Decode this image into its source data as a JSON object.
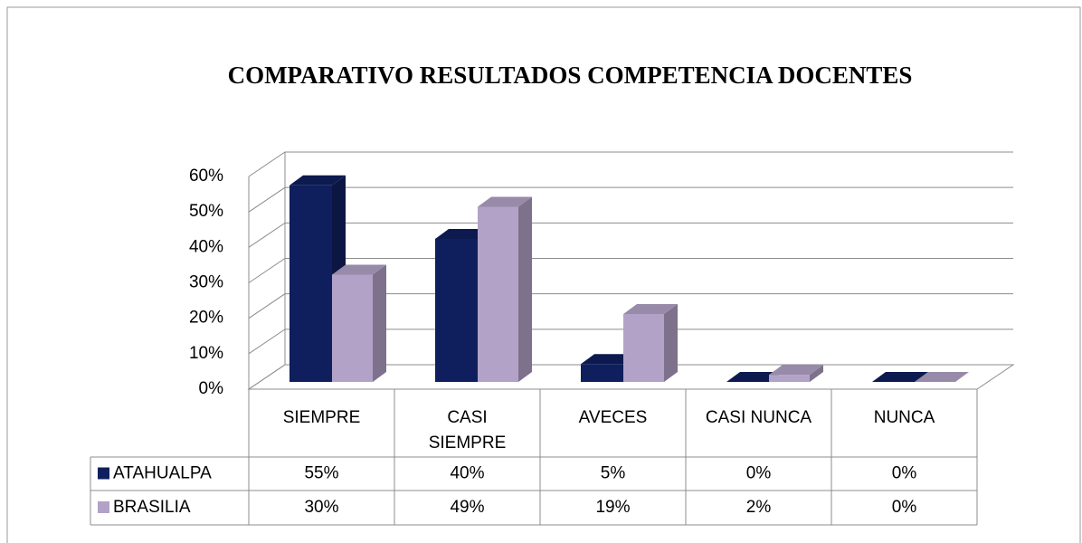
{
  "chart_data": {
    "type": "bar3d",
    "title": "COMPARATIVO RESULTADOS COMPETENCIA  DOCENTES",
    "categories": [
      [
        "SIEMPRE"
      ],
      [
        "CASI",
        "SIEMPRE"
      ],
      [
        "AVECES"
      ],
      [
        "CASI NUNCA"
      ],
      [
        "NUNCA"
      ]
    ],
    "series": [
      {
        "name": "ATAHUALPA",
        "color": "#0f1f5e",
        "values": [
          55,
          40,
          5,
          0,
          0
        ],
        "value_labels": [
          "55%",
          "40%",
          "5%",
          "0%",
          "0%"
        ]
      },
      {
        "name": "BRASILIA",
        "color": "#b3a2c7",
        "values": [
          30,
          49,
          19,
          2,
          0
        ],
        "value_labels": [
          "30%",
          "49%",
          "19%",
          "2%",
          "0%"
        ]
      }
    ],
    "ylim": [
      0,
      60
    ],
    "yticks": [
      {
        "value": 0,
        "label": "0%"
      },
      {
        "value": 10,
        "label": "10%"
      },
      {
        "value": 20,
        "label": "20%"
      },
      {
        "value": 30,
        "label": "30%"
      },
      {
        "value": 40,
        "label": "40%"
      },
      {
        "value": 50,
        "label": "50%"
      },
      {
        "value": 60,
        "label": "60%"
      }
    ],
    "grid": true,
    "data_table": true
  }
}
